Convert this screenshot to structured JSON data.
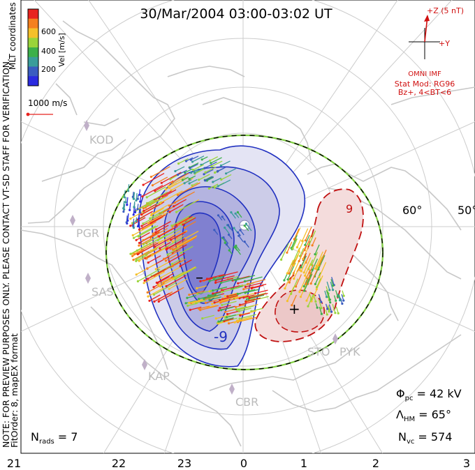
{
  "title": "30/Mar/2004 03:00-03:02 UT",
  "colorbar": {
    "ticks": [
      "600",
      "400",
      "200"
    ],
    "label": "Vel [m/s]",
    "coords": "MLT coordinates",
    "colors": [
      "#e8231f",
      "#f5801e",
      "#f5c02a",
      "#9ad43a",
      "#3cb04a",
      "#3a9c9a",
      "#3a5cc0",
      "#2a2ae0"
    ]
  },
  "scale_vector_label": "1000 m/s",
  "imf": {
    "z_label": "+Z (5 nT)",
    "y_label": "+Y",
    "source": "OMNI IMF",
    "stat_mod": "Stat Mod: RG96",
    "bz_cond": "Bz+, 4<BT<6"
  },
  "watermark": {
    "line1": "NOTE: FOR PREVIEW PURPOSES ONLY. PLEASE CONTACT VT-SD STAFF FOR VERIFICATION.",
    "line2": "FitOrder: 8, mapEX format"
  },
  "stations": [
    "KOD",
    "PGR",
    "SAS",
    "KAP",
    "CBR",
    "STO",
    "PYK"
  ],
  "lat_labels": [
    "60°",
    "50°"
  ],
  "contour_labels": [
    "-9",
    "9"
  ],
  "cell_marks": {
    "minus": "–",
    "plus": "+"
  },
  "stats": {
    "phi_pc_sym": "Φ",
    "phi_pc_sub": "pc",
    "phi_pc_val": "= 42 kV",
    "lambda_sym": "Λ",
    "lambda_sub": "HM",
    "lambda_val": "= 65°",
    "nvc_sym": "N",
    "nvc_sub": "vc",
    "nvc_val": "= 574",
    "nrads_sym": "N",
    "nrads_sub": "rads",
    "nrads_val": "= 7"
  },
  "mlt_axis": [
    "21",
    "22",
    "23",
    "0",
    "1",
    "2",
    "3"
  ]
}
